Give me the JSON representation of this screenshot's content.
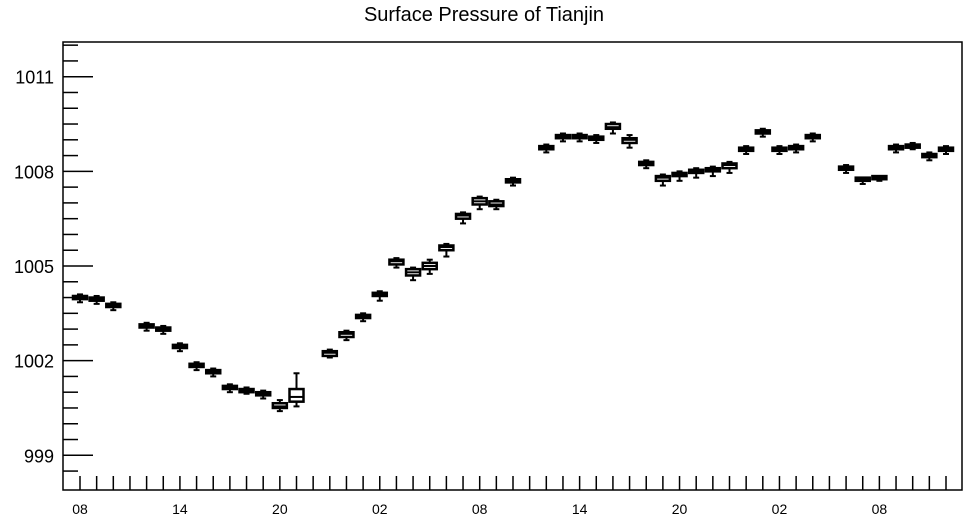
{
  "chart_data": {
    "type": "box",
    "title": "Surface Pressure of Tianjin",
    "xlabel": "",
    "ylabel": "",
    "ylim": [
      997.9,
      1012.1
    ],
    "y_ticks": [
      999,
      1002,
      1005,
      1008,
      1011
    ],
    "y_tick_labels": [
      "999",
      "1002",
      "1005",
      "1008",
      "1011"
    ],
    "x_tick_labels": [
      "08",
      "14",
      "20",
      "02",
      "08",
      "14",
      "20",
      "02",
      "08"
    ],
    "x_label_every": 6,
    "n_slots": 49,
    "grid": false,
    "series": [
      {
        "values": [
          {
            "q1": 1003.95,
            "median": 1004.0,
            "q3": 1004.05,
            "min": 1003.85,
            "max": 1004.1
          },
          {
            "q1": 1003.9,
            "median": 1003.95,
            "q3": 1004.0,
            "min": 1003.8,
            "max": 1004.05
          },
          {
            "q1": 1003.7,
            "median": 1003.75,
            "q3": 1003.8,
            "min": 1003.6,
            "max": 1003.85
          },
          null,
          {
            "q1": 1003.05,
            "median": 1003.1,
            "q3": 1003.15,
            "min": 1002.95,
            "max": 1003.2
          },
          {
            "q1": 1002.95,
            "median": 1003.0,
            "q3": 1003.05,
            "min": 1002.85,
            "max": 1003.1
          },
          {
            "q1": 1002.4,
            "median": 1002.45,
            "q3": 1002.5,
            "min": 1002.3,
            "max": 1002.55
          },
          {
            "q1": 1001.8,
            "median": 1001.85,
            "q3": 1001.9,
            "min": 1001.7,
            "max": 1001.95
          },
          {
            "q1": 1001.6,
            "median": 1001.65,
            "q3": 1001.7,
            "min": 1001.5,
            "max": 1001.75
          },
          {
            "q1": 1001.1,
            "median": 1001.15,
            "q3": 1001.2,
            "min": 1001.0,
            "max": 1001.25
          },
          {
            "q1": 1001.0,
            "median": 1001.05,
            "q3": 1001.1,
            "min": 1000.95,
            "max": 1001.15
          },
          {
            "q1": 1000.9,
            "median": 1000.95,
            "q3": 1001.0,
            "min": 1000.8,
            "max": 1001.05
          },
          {
            "q1": 1000.5,
            "median": 1000.55,
            "q3": 1000.65,
            "min": 1000.4,
            "max": 1000.75
          },
          {
            "q1": 1000.7,
            "median": 1000.85,
            "q3": 1001.1,
            "min": 1000.55,
            "max": 1001.6
          },
          null,
          {
            "q1": 1002.15,
            "median": 1002.25,
            "q3": 1002.3,
            "min": 1002.1,
            "max": 1002.35
          },
          {
            "q1": 1002.75,
            "median": 1002.85,
            "q3": 1002.9,
            "min": 1002.65,
            "max": 1002.95
          },
          {
            "q1": 1003.35,
            "median": 1003.4,
            "q3": 1003.45,
            "min": 1003.25,
            "max": 1003.5
          },
          {
            "q1": 1004.05,
            "median": 1004.1,
            "q3": 1004.15,
            "min": 1003.9,
            "max": 1004.2
          },
          {
            "q1": 1005.05,
            "median": 1005.15,
            "q3": 1005.2,
            "min": 1004.95,
            "max": 1005.25
          },
          {
            "q1": 1004.7,
            "median": 1004.8,
            "q3": 1004.9,
            "min": 1004.55,
            "max": 1004.95
          },
          {
            "q1": 1004.9,
            "median": 1005.0,
            "q3": 1005.1,
            "min": 1004.75,
            "max": 1005.2
          },
          {
            "q1": 1005.5,
            "median": 1005.6,
            "q3": 1005.65,
            "min": 1005.3,
            "max": 1005.7
          },
          {
            "q1": 1006.5,
            "median": 1006.6,
            "q3": 1006.65,
            "min": 1006.35,
            "max": 1006.7
          },
          {
            "q1": 1006.95,
            "median": 1007.05,
            "q3": 1007.15,
            "min": 1006.8,
            "max": 1007.2
          },
          {
            "q1": 1006.9,
            "median": 1006.95,
            "q3": 1007.05,
            "min": 1006.8,
            "max": 1007.1
          },
          {
            "q1": 1007.65,
            "median": 1007.7,
            "q3": 1007.75,
            "min": 1007.55,
            "max": 1007.8
          },
          null,
          {
            "q1": 1008.7,
            "median": 1008.75,
            "q3": 1008.8,
            "min": 1008.6,
            "max": 1008.85
          },
          {
            "q1": 1009.05,
            "median": 1009.1,
            "q3": 1009.15,
            "min": 1008.95,
            "max": 1009.2
          },
          {
            "q1": 1009.05,
            "median": 1009.1,
            "q3": 1009.15,
            "min": 1008.95,
            "max": 1009.2
          },
          {
            "q1": 1009.0,
            "median": 1009.05,
            "q3": 1009.1,
            "min": 1008.9,
            "max": 1009.15
          },
          {
            "q1": 1009.35,
            "median": 1009.4,
            "q3": 1009.5,
            "min": 1009.2,
            "max": 1009.55
          },
          {
            "q1": 1008.9,
            "median": 1009.0,
            "q3": 1009.05,
            "min": 1008.75,
            "max": 1009.15
          },
          {
            "q1": 1008.2,
            "median": 1008.25,
            "q3": 1008.3,
            "min": 1008.1,
            "max": 1008.35
          },
          {
            "q1": 1007.7,
            "median": 1007.8,
            "q3": 1007.85,
            "min": 1007.55,
            "max": 1007.9
          },
          {
            "q1": 1007.85,
            "median": 1007.9,
            "q3": 1007.95,
            "min": 1007.7,
            "max": 1008.0
          },
          {
            "q1": 1007.95,
            "median": 1008.0,
            "q3": 1008.05,
            "min": 1007.8,
            "max": 1008.1
          },
          {
            "q1": 1008.0,
            "median": 1008.05,
            "q3": 1008.1,
            "min": 1007.85,
            "max": 1008.15
          },
          {
            "q1": 1008.1,
            "median": 1008.2,
            "q3": 1008.25,
            "min": 1007.95,
            "max": 1008.3
          },
          {
            "q1": 1008.65,
            "median": 1008.7,
            "q3": 1008.75,
            "min": 1008.55,
            "max": 1008.8
          },
          {
            "q1": 1009.2,
            "median": 1009.25,
            "q3": 1009.3,
            "min": 1009.1,
            "max": 1009.35
          },
          {
            "q1": 1008.65,
            "median": 1008.7,
            "q3": 1008.75,
            "min": 1008.55,
            "max": 1008.8
          },
          {
            "q1": 1008.7,
            "median": 1008.75,
            "q3": 1008.8,
            "min": 1008.6,
            "max": 1008.85
          },
          {
            "q1": 1009.05,
            "median": 1009.1,
            "q3": 1009.15,
            "min": 1008.95,
            "max": 1009.2
          },
          null,
          {
            "q1": 1008.05,
            "median": 1008.1,
            "q3": 1008.15,
            "min": 1007.95,
            "max": 1008.2
          },
          {
            "q1": 1007.7,
            "median": 1007.75,
            "q3": 1007.8,
            "min": 1007.6,
            "max": 1007.8
          },
          {
            "q1": 1007.75,
            "median": 1007.8,
            "q3": 1007.85,
            "min": 1007.7,
            "max": 1007.85
          }
        ]
      }
    ],
    "tail_values": [
      {
        "q1": 1008.7,
        "median": 1008.75,
        "q3": 1008.8,
        "min": 1008.6,
        "max": 1008.85
      },
      {
        "q1": 1008.75,
        "median": 1008.8,
        "q3": 1008.85,
        "min": 1008.7,
        "max": 1008.9
      },
      {
        "q1": 1008.45,
        "median": 1008.5,
        "q3": 1008.55,
        "min": 1008.35,
        "max": 1008.6
      },
      {
        "q1": 1008.65,
        "median": 1008.7,
        "q3": 1008.75,
        "min": 1008.55,
        "max": 1008.8
      }
    ]
  }
}
